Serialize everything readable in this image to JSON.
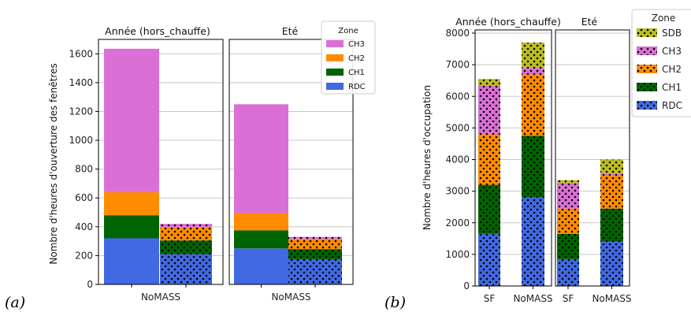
{
  "captions": {
    "a": "(a)",
    "b": "(b)"
  },
  "chart_data": [
    {
      "type": "bar",
      "stacked": true,
      "ylabel": "Nombre d'heures d'ouverture des fenêtres",
      "ylim": [
        0,
        1700
      ],
      "yticks": [
        0,
        200,
        400,
        600,
        800,
        1000,
        1200,
        1400,
        1600
      ],
      "legend": {
        "title": "Zone",
        "placement": "top-right",
        "entries": [
          "CH3",
          "CH2",
          "CH1",
          "RDC"
        ]
      },
      "panels": [
        {
          "title": "Année (hors_chauffe)",
          "xlabel": "NoMASS",
          "bars": [
            {
              "hatch": "none",
              "segments": [
                {
                  "zone": "RDC",
                  "value": 320
                },
                {
                  "zone": "CH1",
                  "value": 160
                },
                {
                  "zone": "CH2",
                  "value": 160
                },
                {
                  "zone": "CH3",
                  "value": 995
                }
              ]
            },
            {
              "hatch": "dots",
              "segments": [
                {
                  "zone": "RDC",
                  "value": 210
                },
                {
                  "zone": "CH1",
                  "value": 95
                },
                {
                  "zone": "CH2",
                  "value": 90
                },
                {
                  "zone": "CH3",
                  "value": 25
                }
              ]
            }
          ]
        },
        {
          "title": "Eté",
          "xlabel": "NoMASS",
          "bars": [
            {
              "hatch": "none",
              "segments": [
                {
                  "zone": "RDC",
                  "value": 250
                },
                {
                  "zone": "CH1",
                  "value": 125
                },
                {
                  "zone": "CH2",
                  "value": 120
                },
                {
                  "zone": "CH3",
                  "value": 755
                }
              ]
            },
            {
              "hatch": "dots",
              "segments": [
                {
                  "zone": "RDC",
                  "value": 175
                },
                {
                  "zone": "CH1",
                  "value": 70
                },
                {
                  "zone": "CH2",
                  "value": 70
                },
                {
                  "zone": "CH3",
                  "value": 15
                }
              ]
            }
          ]
        }
      ]
    },
    {
      "type": "bar",
      "stacked": true,
      "ylabel": "Nombre d'heures d'occupation",
      "ylim": [
        0,
        8100
      ],
      "yticks": [
        0,
        1000,
        2000,
        3000,
        4000,
        5000,
        6000,
        7000,
        8000
      ],
      "legend": {
        "title": "Zone",
        "placement": "top-right",
        "entries": [
          "SDB",
          "CH3",
          "CH2",
          "CH1",
          "RDC"
        ]
      },
      "panels": [
        {
          "title": "Année (hors_chauffe)",
          "bars": [
            {
              "xlabel": "SF",
              "hatch": "dots",
              "segments": [
                {
                  "zone": "RDC",
                  "value": 1650
                },
                {
                  "zone": "CH1",
                  "value": 1550
                },
                {
                  "zone": "CH2",
                  "value": 1600
                },
                {
                  "zone": "CH3",
                  "value": 1550
                },
                {
                  "zone": "SDB",
                  "value": 200
                }
              ]
            },
            {
              "xlabel": "NoMASS",
              "hatch": "dots",
              "segments": [
                {
                  "zone": "RDC",
                  "value": 2800
                },
                {
                  "zone": "CH1",
                  "value": 1950
                },
                {
                  "zone": "CH2",
                  "value": 1950
                },
                {
                  "zone": "CH3",
                  "value": 200
                },
                {
                  "zone": "SDB",
                  "value": 800
                }
              ]
            }
          ]
        },
        {
          "title": "Eté",
          "bars": [
            {
              "xlabel": "SF",
              "hatch": "dots",
              "segments": [
                {
                  "zone": "RDC",
                  "value": 850
                },
                {
                  "zone": "CH1",
                  "value": 800
                },
                {
                  "zone": "CH2",
                  "value": 800
                },
                {
                  "zone": "CH3",
                  "value": 800
                },
                {
                  "zone": "SDB",
                  "value": 100
                }
              ]
            },
            {
              "xlabel": "NoMASS",
              "hatch": "dots",
              "segments": [
                {
                  "zone": "RDC",
                  "value": 1400
                },
                {
                  "zone": "CH1",
                  "value": 1050
                },
                {
                  "zone": "CH2",
                  "value": 1050
                },
                {
                  "zone": "CH3",
                  "value": 50
                },
                {
                  "zone": "SDB",
                  "value": 450
                }
              ]
            }
          ]
        }
      ]
    }
  ],
  "colors": {
    "SDB": "#bcbd22",
    "CH3": "#da70d6",
    "CH2": "#ff8c00",
    "CH1": "#006400",
    "RDC": "#4169e1"
  }
}
